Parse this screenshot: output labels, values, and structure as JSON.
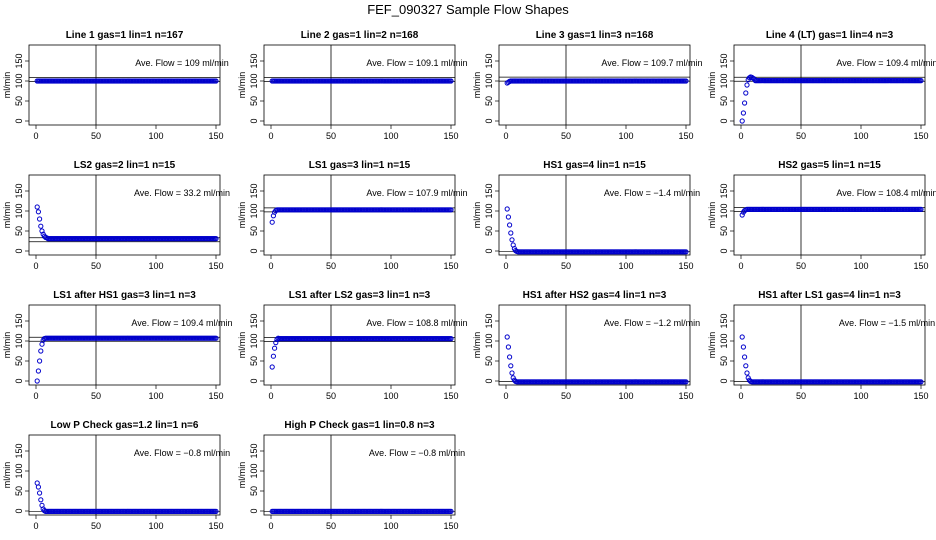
{
  "figure_title": "FEF_090327  Sample Flow Shapes",
  "colors": {
    "points": "#0000cc",
    "axes": "#000000",
    "background": "#ffffff"
  },
  "chart_data": [
    {
      "type": "scatter",
      "title": "Line 1 gas=1 lin=1 n=167",
      "ylabel": "ml/min",
      "annotation": "Ave. Flow =  109  ml/min",
      "ref_lines": [
        109,
        99
      ],
      "xlim": [
        0,
        150
      ],
      "ylim": [
        -10,
        190
      ],
      "xticks": [
        0,
        50,
        100,
        150
      ],
      "yticks": [
        0,
        50,
        100,
        150
      ],
      "vline": 50,
      "shape": {
        "steady": 100,
        "start": []
      }
    },
    {
      "type": "scatter",
      "title": "Line 2 gas=1 lin=2 n=168",
      "ylabel": "ml/min",
      "annotation": "Ave. Flow =  109.1  ml/min",
      "ref_lines": [
        109.1,
        99.1
      ],
      "xlim": [
        0,
        150
      ],
      "ylim": [
        -10,
        190
      ],
      "xticks": [
        0,
        50,
        100,
        150
      ],
      "yticks": [
        0,
        50,
        100,
        150
      ],
      "vline": 50,
      "shape": {
        "steady": 100,
        "start": []
      }
    },
    {
      "type": "scatter",
      "title": "Line 3 gas=1 lin=3 n=168",
      "ylabel": "ml/min",
      "annotation": "Ave. Flow =  109.7  ml/min",
      "ref_lines": [
        109.7,
        99.7
      ],
      "xlim": [
        0,
        150
      ],
      "ylim": [
        -10,
        190
      ],
      "xticks": [
        0,
        50,
        100,
        150
      ],
      "yticks": [
        0,
        50,
        100,
        150
      ],
      "vline": 50,
      "shape": {
        "steady": 100,
        "start": [
          95,
          97,
          99
        ]
      }
    },
    {
      "type": "scatter",
      "title": "Line 4 (LT) gas=1 lin=4 n=3",
      "ylabel": "ml/min",
      "annotation": "Ave. Flow =  109.4  ml/min",
      "ref_lines": [
        109.4,
        99.4
      ],
      "xlim": [
        0,
        150
      ],
      "ylim": [
        -10,
        190
      ],
      "xticks": [
        0,
        50,
        100,
        150
      ],
      "yticks": [
        0,
        50,
        100,
        150
      ],
      "vline": 50,
      "shape": {
        "steady": 101,
        "start": [
          0,
          20,
          45,
          70,
          90,
          103,
          108,
          110,
          109,
          107,
          105
        ]
      }
    },
    {
      "type": "scatter",
      "title": "LS2 gas=2 lin=1 n=15",
      "ylabel": "ml/min",
      "annotation": "Ave. Flow =  33.2  ml/min",
      "ref_lines": [
        33.2,
        23.2
      ],
      "xlim": [
        0,
        150
      ],
      "ylim": [
        -10,
        190
      ],
      "xticks": [
        0,
        50,
        100,
        150
      ],
      "yticks": [
        0,
        50,
        100,
        150
      ],
      "vline": 50,
      "shape": {
        "steady": 31,
        "start": [
          110,
          98,
          80,
          62,
          50,
          42,
          37,
          34,
          33
        ]
      }
    },
    {
      "type": "scatter",
      "title": "LS1 gas=3 lin=1 n=15",
      "ylabel": "ml/min",
      "annotation": "Ave. Flow =  107.9  ml/min",
      "ref_lines": [
        107.9,
        97.9
      ],
      "xlim": [
        0,
        150
      ],
      "ylim": [
        -10,
        190
      ],
      "xticks": [
        0,
        50,
        100,
        150
      ],
      "yticks": [
        0,
        50,
        100,
        150
      ],
      "vline": 50,
      "shape": {
        "steady": 103,
        "start": [
          72,
          88,
          97,
          101,
          103
        ]
      }
    },
    {
      "type": "scatter",
      "title": "HS1 gas=4 lin=1 n=15",
      "ylabel": "ml/min",
      "annotation": "Ave. Flow =  −1.4  ml/min",
      "ref_lines": [
        -1.4,
        -11.4
      ],
      "xlim": [
        0,
        150
      ],
      "ylim": [
        -10,
        190
      ],
      "xticks": [
        0,
        50,
        100,
        150
      ],
      "yticks": [
        0,
        50,
        100,
        150
      ],
      "vline": 50,
      "shape": {
        "steady": -2,
        "start": [
          105,
          85,
          65,
          45,
          28,
          15,
          6,
          1,
          -1
        ]
      }
    },
    {
      "type": "scatter",
      "title": "HS2 gas=5 lin=1 n=15",
      "ylabel": "ml/min",
      "annotation": "Ave. Flow =  108.4  ml/min",
      "ref_lines": [
        108.4,
        98.4
      ],
      "xlim": [
        0,
        150
      ],
      "ylim": [
        -10,
        190
      ],
      "xticks": [
        0,
        50,
        100,
        150
      ],
      "yticks": [
        0,
        50,
        100,
        150
      ],
      "vline": 50,
      "shape": {
        "steady": 104,
        "start": [
          90,
          97,
          101,
          103
        ]
      }
    },
    {
      "type": "scatter",
      "title": "LS1 after HS1 gas=3 lin=1 n=3",
      "ylabel": "ml/min",
      "annotation": "Ave. Flow =  109.4  ml/min",
      "ref_lines": [
        109.4,
        99.4
      ],
      "xlim": [
        0,
        150
      ],
      "ylim": [
        -10,
        190
      ],
      "xticks": [
        0,
        50,
        100,
        150
      ],
      "yticks": [
        0,
        50,
        100,
        150
      ],
      "vline": 50,
      "shape": {
        "steady": 107,
        "start": [
          0,
          25,
          50,
          75,
          92,
          102,
          106
        ]
      }
    },
    {
      "type": "scatter",
      "title": "LS1 after LS2 gas=3 lin=1 n=3",
      "ylabel": "ml/min",
      "annotation": "Ave. Flow =  108.8  ml/min",
      "ref_lines": [
        108.8,
        98.8
      ],
      "xlim": [
        0,
        150
      ],
      "ylim": [
        -10,
        190
      ],
      "xticks": [
        0,
        50,
        100,
        150
      ],
      "yticks": [
        0,
        50,
        100,
        150
      ],
      "vline": 50,
      "shape": {
        "steady": 106,
        "start": [
          35,
          62,
          82,
          96,
          104,
          107
        ]
      }
    },
    {
      "type": "scatter",
      "title": "HS1 after HS2 gas=4 lin=1 n=3",
      "ylabel": "ml/min",
      "annotation": "Ave. Flow =  −1.2  ml/min",
      "ref_lines": [
        -1.2,
        -11.2
      ],
      "xlim": [
        0,
        150
      ],
      "ylim": [
        -10,
        190
      ],
      "xticks": [
        0,
        50,
        100,
        150
      ],
      "yticks": [
        0,
        50,
        100,
        150
      ],
      "vline": 50,
      "shape": {
        "steady": -2,
        "start": [
          110,
          85,
          60,
          38,
          20,
          8,
          2,
          -1
        ]
      }
    },
    {
      "type": "scatter",
      "title": "HS1 after LS1 gas=4 lin=1 n=3",
      "ylabel": "ml/min",
      "annotation": "Ave. Flow =  −1.5  ml/min",
      "ref_lines": [
        -1.5,
        -11.5
      ],
      "xlim": [
        0,
        150
      ],
      "ylim": [
        -10,
        190
      ],
      "xticks": [
        0,
        50,
        100,
        150
      ],
      "yticks": [
        0,
        50,
        100,
        150
      ],
      "vline": 50,
      "shape": {
        "steady": -2,
        "start": [
          110,
          85,
          60,
          38,
          20,
          8,
          2,
          -1
        ]
      }
    },
    {
      "type": "scatter",
      "title": "Low P Check gas=1.2 lin=1 n=6",
      "ylabel": "ml/min",
      "annotation": "Ave. Flow =  −0.8  ml/min",
      "ref_lines": [
        -0.8,
        -10.8
      ],
      "xlim": [
        0,
        150
      ],
      "ylim": [
        -10,
        190
      ],
      "xticks": [
        0,
        50,
        100,
        150
      ],
      "yticks": [
        0,
        50,
        100,
        150
      ],
      "vline": 50,
      "shape": {
        "steady": -1,
        "start": [
          70,
          60,
          45,
          28,
          14,
          5,
          1
        ]
      }
    },
    {
      "type": "scatter",
      "title": "High P Check gas=1 lin=0.8 n=3",
      "ylabel": "ml/min",
      "annotation": "Ave. Flow =  −0.8  ml/min",
      "ref_lines": [
        -0.8,
        -10.8
      ],
      "xlim": [
        0,
        150
      ],
      "ylim": [
        -10,
        190
      ],
      "xticks": [
        0,
        50,
        100,
        150
      ],
      "yticks": [
        0,
        50,
        100,
        150
      ],
      "vline": 50,
      "shape": {
        "steady": -1,
        "start": []
      }
    }
  ]
}
